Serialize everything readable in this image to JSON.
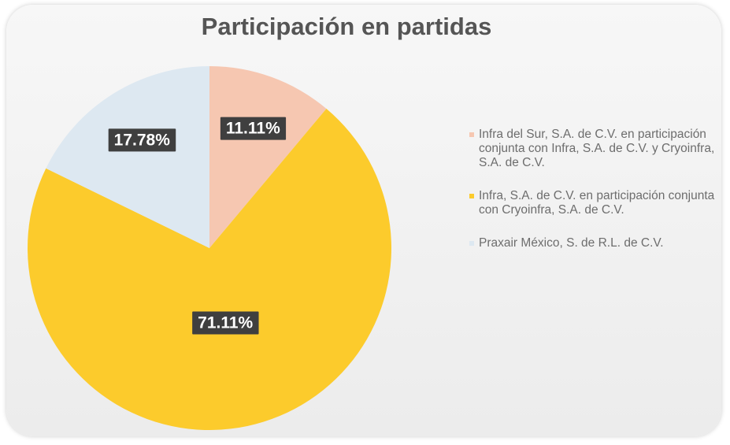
{
  "chart_data": {
    "type": "pie",
    "title": "Participación  en partidas",
    "categories": [
      "Infra del Sur, S.A. de C.V. en participación conjunta con Infra, S.A. de C.V. y Cryoinfra, S.A. de C.V.",
      "Infra, S.A. de C.V. en participación conjunta con Cryoinfra, S.A. de C.V.",
      "Praxair México, S. de R.L. de C.V."
    ],
    "values": [
      11.11,
      71.11,
      17.78
    ],
    "value_labels": [
      "11.11%",
      "71.11%",
      "17.78%"
    ],
    "colors": [
      "#f6c7b1",
      "#fccb2c",
      "#dde8f1"
    ],
    "legend": "right"
  }
}
